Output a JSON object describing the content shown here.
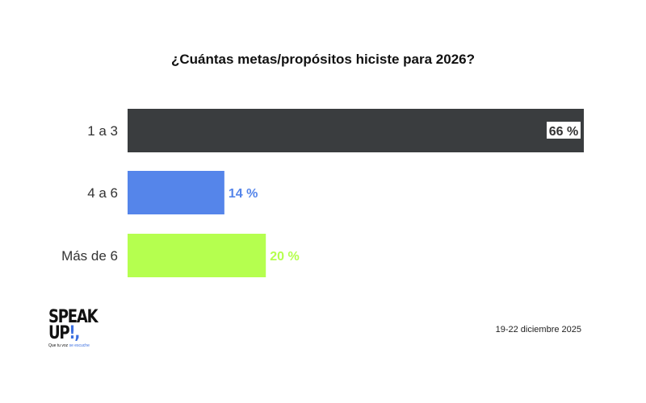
{
  "title": "¿Cuántas metas/propósitos hiciste para 2026?",
  "footer": {
    "date": "19-22 diciembre 2025",
    "logo_line1": "SPEAK",
    "logo_line2": "UP",
    "logo_mark": "!,",
    "logo_tagline_a": "Que tu voz",
    "logo_tagline_b": "se escuche"
  },
  "chart_data": {
    "type": "bar",
    "orientation": "horizontal",
    "title": "¿Cuántas metas/propósitos hiciste para 2026?",
    "categories": [
      "1 a 3",
      "4 a 6",
      "Más de 6"
    ],
    "values": [
      66,
      14,
      20
    ],
    "value_labels": [
      "66 %",
      "14 %",
      "20 %"
    ],
    "colors": [
      "#3a3d3f",
      "#5585ea",
      "#b5ff4f"
    ],
    "label_colors": [
      "#333333",
      "#5585ea",
      "#b5ff4f"
    ],
    "xlim": [
      0,
      66
    ],
    "grid": false,
    "legend": "none"
  }
}
